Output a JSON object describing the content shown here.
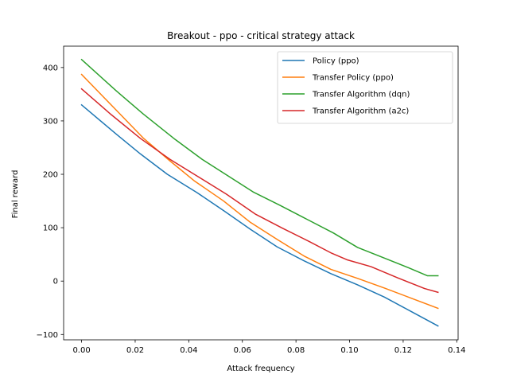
{
  "chart_data": {
    "type": "line",
    "title": "Breakout - ppo - critical strategy attack",
    "xlabel": "Attack frequency",
    "ylabel": "Final reward",
    "xlim": [
      -0.0067,
      0.1405
    ],
    "ylim": [
      -110,
      440
    ],
    "xticks": [
      0.0,
      0.02,
      0.04,
      0.06,
      0.08,
      0.1,
      0.12,
      0.14
    ],
    "xtick_labels": [
      "0.00",
      "0.02",
      "0.04",
      "0.06",
      "0.08",
      "0.10",
      "0.12",
      "0.14"
    ],
    "yticks": [
      -100,
      0,
      100,
      200,
      300,
      400
    ],
    "ytick_labels": [
      "−100",
      "0",
      "100",
      "200",
      "300",
      "400"
    ],
    "grid": false,
    "legend_position": "top-right",
    "series": [
      {
        "name": "Policy (ppo)",
        "color": "#1f77b4",
        "x": [
          0.0,
          0.013,
          0.022,
          0.032,
          0.043,
          0.053,
          0.063,
          0.073,
          0.083,
          0.093,
          0.103,
          0.113,
          0.123,
          0.133
        ],
        "y": [
          330,
          275,
          238,
          200,
          166,
          132,
          97,
          64,
          38,
          14,
          -7,
          -30,
          -57,
          -84
        ]
      },
      {
        "name": "Transfer Policy (ppo)",
        "color": "#ff7f0e",
        "x": [
          0.0,
          0.012,
          0.023,
          0.033,
          0.042,
          0.053,
          0.063,
          0.073,
          0.083,
          0.093,
          0.103,
          0.113,
          0.123,
          0.133
        ],
        "y": [
          387,
          325,
          268,
          225,
          188,
          150,
          110,
          78,
          47,
          22,
          5,
          -13,
          -32,
          -51
        ]
      },
      {
        "name": "Transfer Algorithm (dqn)",
        "color": "#2ca02c",
        "x": [
          0.0,
          0.013,
          0.023,
          0.035,
          0.045,
          0.055,
          0.064,
          0.074,
          0.084,
          0.094,
          0.103,
          0.113,
          0.122,
          0.129,
          0.133
        ],
        "y": [
          415,
          356,
          313,
          265,
          228,
          196,
          167,
          142,
          116,
          90,
          63,
          43,
          25,
          10,
          10
        ]
      },
      {
        "name": "Transfer Algorithm (a2c)",
        "color": "#d62728",
        "x": [
          0.0,
          0.011,
          0.022,
          0.033,
          0.043,
          0.054,
          0.065,
          0.075,
          0.085,
          0.093,
          0.099,
          0.108,
          0.118,
          0.128,
          0.133
        ],
        "y": [
          360,
          312,
          267,
          228,
          197,
          163,
          125,
          99,
          74,
          53,
          40,
          27,
          6,
          -14,
          -21
        ]
      }
    ]
  }
}
